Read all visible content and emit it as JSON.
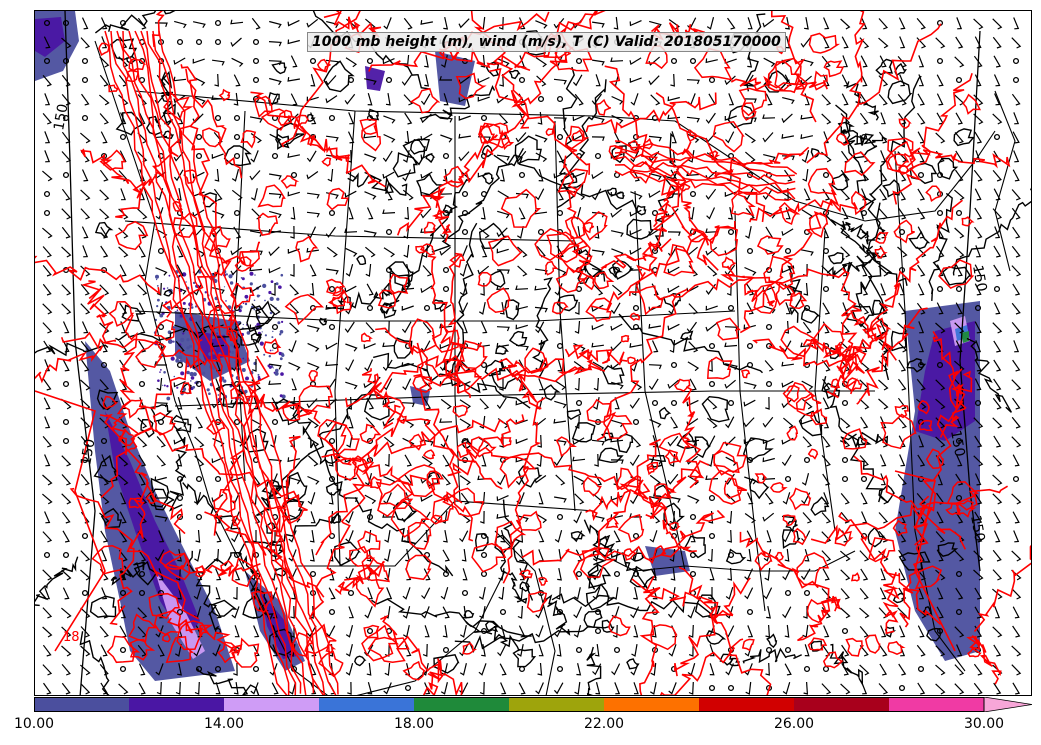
{
  "title": "1000 mb height (m), wind (m/s), T (C) Valid: 201805170000",
  "contour_labels": [
    {
      "text": "150"
    },
    {
      "text": "150"
    },
    {
      "text": "150"
    },
    {
      "text": "150"
    },
    {
      "text": "150"
    },
    {
      "text": "18"
    }
  ],
  "colorbar": {
    "min": 10,
    "max": 30,
    "step": 2,
    "extend": "max",
    "colors": [
      "#4b4f9e",
      "#4a16a4",
      "#cf9cf6",
      "#3a74d8",
      "#1f8a3a",
      "#9ea40c",
      "#fd7100",
      "#d10000",
      "#a8001c",
      "#f03aa4",
      "#f7a6d8"
    ],
    "tick_labels": [
      "10.00",
      "14.00",
      "18.00",
      "22.00",
      "26.00",
      "30.00"
    ]
  },
  "colors": {
    "temperature_contour": "#ff0000",
    "height_contour": "#000000",
    "state_borders": "#000000",
    "wind_barbs": "#000000"
  }
}
